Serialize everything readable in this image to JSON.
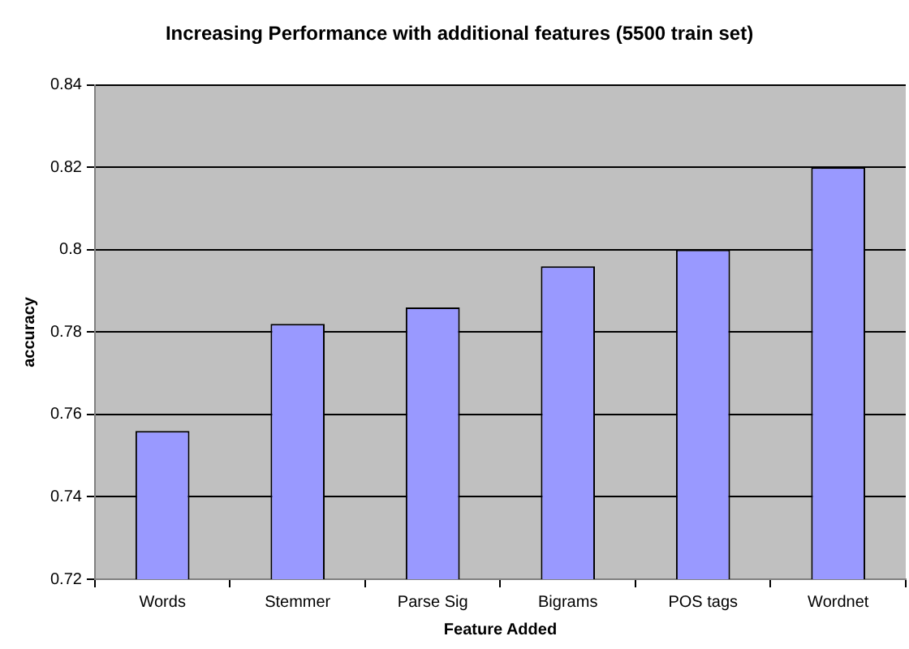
{
  "chart_data": {
    "type": "bar",
    "title": "Increasing Performance with additional features (5500 train set)",
    "xlabel": "Feature Added",
    "ylabel": "accuracy",
    "categories": [
      "Words",
      "Stemmer",
      "Parse Sig",
      "Bigrams",
      "POS tags",
      "Wordnet"
    ],
    "values": [
      0.756,
      0.782,
      0.786,
      0.796,
      0.8,
      0.82
    ],
    "color": "#9999ff",
    "ylim": [
      0.72,
      0.84
    ],
    "yticks": [
      0.72,
      0.74,
      0.76,
      0.78,
      0.8,
      0.82,
      0.84
    ],
    "grid": "y",
    "legend": false
  }
}
